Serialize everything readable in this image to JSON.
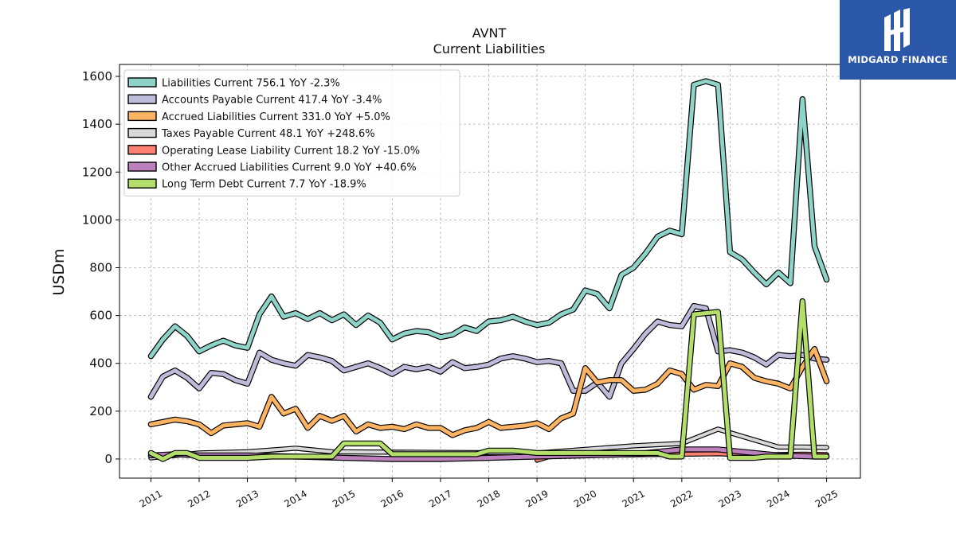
{
  "brand": {
    "name": "MIDGARD FINANCE",
    "bg_color": "#2b57a8"
  },
  "chart_data": {
    "type": "line",
    "title": "AVNT",
    "subtitle": "Current  Liabilities",
    "ylabel": "USDm",
    "xlabel": "",
    "ylim": [
      -80,
      1650
    ],
    "xlim": [
      2010.35,
      2025.7
    ],
    "yticks": [
      0,
      200,
      400,
      600,
      800,
      1000,
      1200,
      1400,
      1600
    ],
    "xticks": [
      2011,
      2012,
      2013,
      2014,
      2015,
      2016,
      2017,
      2018,
      2019,
      2020,
      2021,
      2022,
      2023,
      2024,
      2025
    ],
    "grid": true,
    "legend_position": "top-left",
    "series": [
      {
        "name": "Liabilities Current",
        "legend": "Liabilities Current  756.1 YoY -2.3%",
        "color": "#8dd3c7",
        "width": 5,
        "x": [
          2011.0,
          2011.25,
          2011.5,
          2011.75,
          2012.0,
          2012.25,
          2012.5,
          2012.75,
          2013.0,
          2013.25,
          2013.5,
          2013.75,
          2014.0,
          2014.25,
          2014.5,
          2014.75,
          2015.0,
          2015.25,
          2015.5,
          2015.75,
          2016.0,
          2016.25,
          2016.5,
          2016.75,
          2017.0,
          2017.25,
          2017.5,
          2017.75,
          2018.0,
          2018.25,
          2018.5,
          2018.75,
          2019.0,
          2019.25,
          2019.5,
          2019.75,
          2020.0,
          2020.25,
          2020.5,
          2020.75,
          2021.0,
          2021.25,
          2021.5,
          2021.75,
          2022.0,
          2022.25,
          2022.5,
          2022.75,
          2023.0,
          2023.25,
          2023.5,
          2023.75,
          2024.0,
          2024.25,
          2024.5,
          2024.75,
          2025.0
        ],
        "y": [
          430,
          500,
          555,
          515,
          450,
          475,
          495,
          475,
          465,
          605,
          680,
          595,
          610,
          585,
          610,
          580,
          605,
          560,
          600,
          570,
          500,
          525,
          535,
          530,
          510,
          520,
          550,
          535,
          575,
          580,
          595,
          575,
          560,
          570,
          605,
          625,
          705,
          690,
          630,
          770,
          800,
          860,
          930,
          955,
          940,
          1565,
          1580,
          1565,
          865,
          835,
          780,
          730,
          780,
          735,
          1505,
          890,
          750
        ]
      },
      {
        "name": "Accounts Payable Current",
        "legend": "Accounts Payable Current  417.4 YoY -3.4%",
        "color": "#bebada",
        "width": 5,
        "x": [
          2011.0,
          2011.25,
          2011.5,
          2011.75,
          2012.0,
          2012.25,
          2012.5,
          2012.75,
          2013.0,
          2013.25,
          2013.5,
          2013.75,
          2014.0,
          2014.25,
          2014.5,
          2014.75,
          2015.0,
          2015.25,
          2015.5,
          2015.75,
          2016.0,
          2016.25,
          2016.5,
          2016.75,
          2017.0,
          2017.25,
          2017.5,
          2017.75,
          2018.0,
          2018.25,
          2018.5,
          2018.75,
          2019.0,
          2019.25,
          2019.5,
          2019.75,
          2020.0,
          2020.25,
          2020.5,
          2020.75,
          2021.0,
          2021.25,
          2021.5,
          2021.75,
          2022.0,
          2022.25,
          2022.5,
          2022.75,
          2023.0,
          2023.25,
          2023.5,
          2023.75,
          2024.0,
          2024.25,
          2024.5,
          2024.75,
          2025.0
        ],
        "y": [
          260,
          345,
          370,
          340,
          295,
          360,
          355,
          330,
          315,
          445,
          415,
          400,
          390,
          435,
          425,
          410,
          370,
          385,
          400,
          380,
          355,
          385,
          375,
          385,
          365,
          405,
          380,
          385,
          395,
          420,
          430,
          420,
          405,
          410,
          400,
          285,
          285,
          320,
          260,
          400,
          460,
          525,
          575,
          560,
          555,
          640,
          630,
          450,
          455,
          445,
          425,
          395,
          435,
          430,
          435,
          420,
          415
        ]
      },
      {
        "name": "Accrued Liabilities Current",
        "legend": "Accrued Liabilities Current  331.0 YoY +5.0%",
        "color": "#fdb462",
        "width": 5,
        "x": [
          2011.0,
          2011.25,
          2011.5,
          2011.75,
          2012.0,
          2012.25,
          2012.5,
          2012.75,
          2013.0,
          2013.25,
          2013.5,
          2013.75,
          2014.0,
          2014.25,
          2014.5,
          2014.75,
          2015.0,
          2015.25,
          2015.5,
          2015.75,
          2016.0,
          2016.25,
          2016.5,
          2016.75,
          2017.0,
          2017.25,
          2017.5,
          2017.75,
          2018.0,
          2018.25,
          2018.5,
          2018.75,
          2019.0,
          2019.25,
          2019.5,
          2019.75,
          2020.0,
          2020.25,
          2020.5,
          2020.75,
          2021.0,
          2021.25,
          2021.5,
          2021.75,
          2022.0,
          2022.25,
          2022.5,
          2022.75,
          2023.0,
          2023.25,
          2023.5,
          2023.75,
          2024.0,
          2024.25,
          2024.5,
          2024.75,
          2025.0
        ],
        "y": [
          145,
          155,
          165,
          158,
          145,
          108,
          140,
          145,
          150,
          135,
          260,
          190,
          210,
          130,
          180,
          160,
          180,
          115,
          145,
          130,
          135,
          125,
          145,
          130,
          130,
          100,
          120,
          130,
          155,
          130,
          135,
          140,
          150,
          125,
          170,
          190,
          380,
          320,
          330,
          330,
          285,
          290,
          315,
          370,
          355,
          290,
          310,
          305,
          400,
          385,
          340,
          325,
          315,
          295,
          385,
          460,
          325
        ]
      },
      {
        "name": "Taxes Payable Current",
        "legend": "Taxes Payable Current  48.1 YoY +248.6%",
        "color": "#d9d9d9",
        "width": 4,
        "x": [
          2011.0,
          2012.0,
          2013.0,
          2014.0,
          2014.75,
          2019.0,
          2021.0,
          2022.0,
          2022.75,
          2023.0,
          2024.0,
          2024.5,
          2025.0
        ],
        "y": [
          5,
          25,
          30,
          45,
          30,
          25,
          55,
          65,
          125,
          110,
          50,
          50,
          48
        ]
      },
      {
        "name": "Operating Lease Liability Current",
        "legend": "Operating Lease Liability Current  18.2 YoY -15.0%",
        "color": "#fb8072",
        "width": 4,
        "x": [
          2019.0,
          2019.25,
          2020.0,
          2021.0,
          2022.0,
          2022.75,
          2023.0,
          2023.75,
          2024.0,
          2024.5,
          2025.0
        ],
        "y": [
          -5,
          10,
          15,
          18,
          20,
          22,
          20,
          18,
          18,
          20,
          18
        ]
      },
      {
        "name": "Other Accrued Liabilities Current",
        "legend": "Other Accrued Liabilities Current  9.0 YoY +40.6%",
        "color": "#bc80bd",
        "width": 5,
        "x": [
          2011.0,
          2011.5,
          2012.0,
          2013.0,
          2014.0,
          2015.0,
          2016.0,
          2017.0,
          2018.0,
          2019.0,
          2020.0,
          2021.0,
          2022.0,
          2022.75,
          2023.0,
          2024.0,
          2024.75,
          2025.0
        ],
        "y": [
          15,
          20,
          15,
          15,
          10,
          5,
          0,
          0,
          5,
          10,
          15,
          20,
          40,
          40,
          35,
          15,
          10,
          10
        ]
      },
      {
        "name": "Long Term Debt Current",
        "legend": "Long Term Debt Current  7.7 YoY -18.9%",
        "color": "#b3de69",
        "width": 5,
        "x": [
          2011.0,
          2011.25,
          2011.5,
          2011.75,
          2012.0,
          2012.5,
          2013.0,
          2013.5,
          2014.0,
          2014.75,
          2015.0,
          2015.25,
          2015.5,
          2015.75,
          2016.0,
          2016.5,
          2017.0,
          2017.5,
          2017.75,
          2018.0,
          2018.25,
          2018.5,
          2018.75,
          2019.0,
          2019.5,
          2020.0,
          2020.5,
          2021.0,
          2021.5,
          2021.75,
          2022.0,
          2022.25,
          2022.5,
          2022.75,
          2023.0,
          2023.25,
          2023.5,
          2023.75,
          2024.0,
          2024.25,
          2024.5,
          2024.75,
          2025.0
        ],
        "y": [
          25,
          0,
          25,
          25,
          5,
          5,
          5,
          10,
          10,
          10,
          65,
          65,
          65,
          65,
          20,
          20,
          20,
          20,
          20,
          35,
          35,
          35,
          30,
          25,
          25,
          25,
          25,
          25,
          25,
          10,
          10,
          605,
          610,
          615,
          5,
          5,
          5,
          10,
          10,
          10,
          660,
          10,
          10
        ]
      }
    ]
  }
}
